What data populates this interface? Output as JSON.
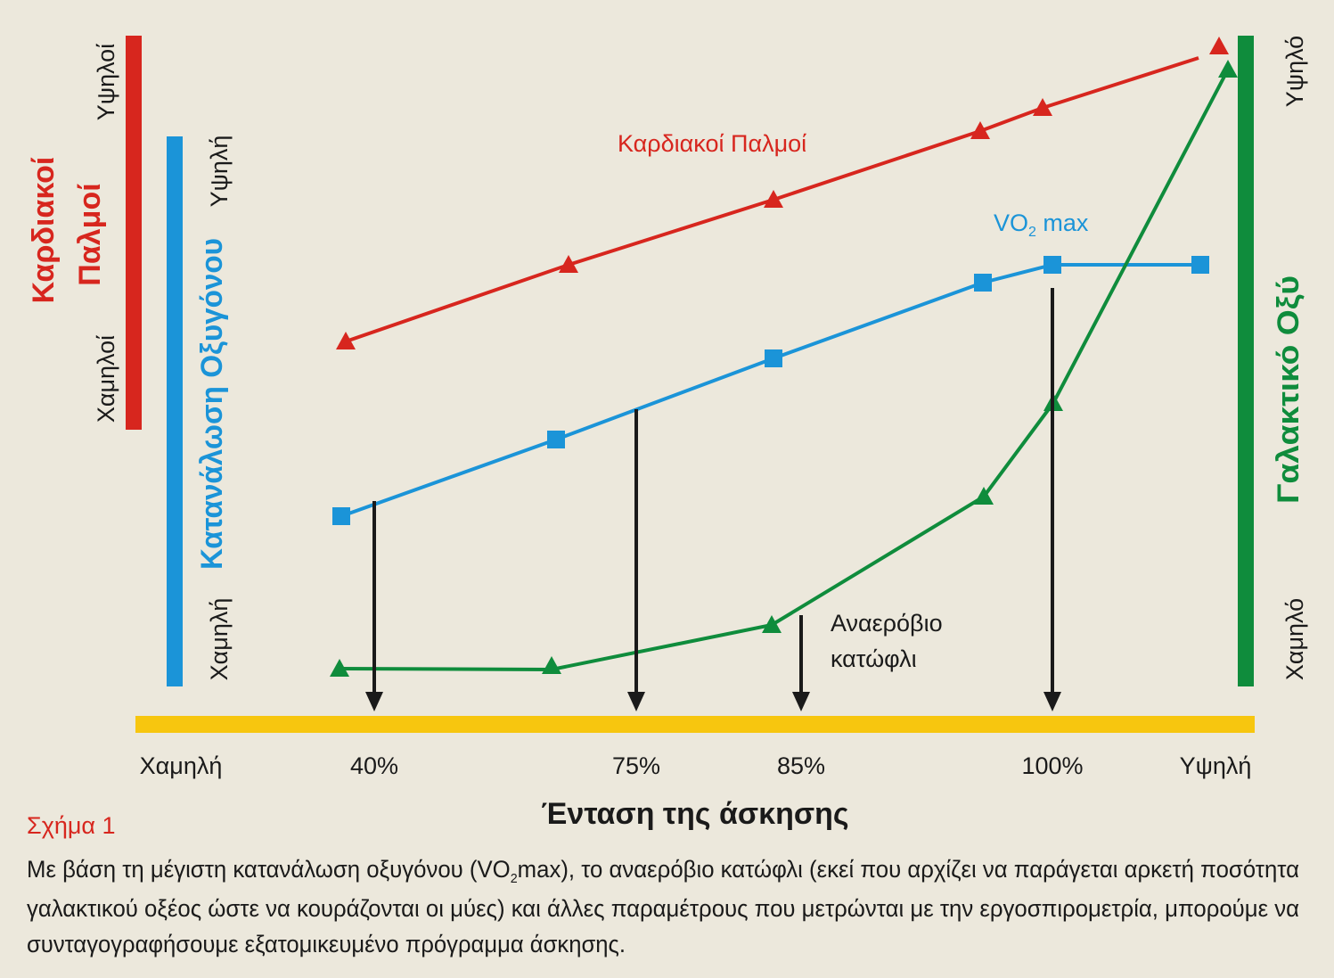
{
  "left_axes": {
    "heart_rate": {
      "high": "Υψηλοί",
      "low": "Χαμηλοί",
      "title": [
        "Καρδιακοί",
        "Παλμοί"
      ]
    },
    "oxygen": {
      "high": "Υψηλή",
      "low": "Χαμηλή",
      "title": "Κατανάλωση Οξυγόνου"
    }
  },
  "right_axis": {
    "high": "Υψηλό",
    "low": "Χαμηλό",
    "title": "Γαλακτικό Οξύ"
  },
  "curve_labels": {
    "heart_rate": "Καρδιακοί Παλμοί",
    "vo2": [
      "VO",
      "2",
      " max"
    ],
    "threshold": [
      "Αναερόβιο",
      "κατώφλι"
    ]
  },
  "x_axis": {
    "labels": [
      "Χαμηλή",
      "40%",
      "75%",
      "85%",
      "100%",
      "Υψηλή"
    ],
    "title": "Ένταση της άσκησης"
  },
  "caption": {
    "label": "Σχήμα 1",
    "lines": [
      [
        "Με βάση τη μέγιστη κατανάλωση οξυγόνου (VO",
        "2",
        "max), το αναερόβιο κατώφλι (εκεί που αρχίζει να παράγεται αρκετή ποσότητα"
      ],
      [
        "γαλακτικού οξέος ώστε να κουράζονται οι μύες) και άλλες παραμέτρους που μετρώνται με την εργοσπιρομετρία, μπορούμε να"
      ],
      [
        "συνταγογραφήσουμε εξατομικευμένο πρόγραμμα άσκησης."
      ]
    ]
  }
}
